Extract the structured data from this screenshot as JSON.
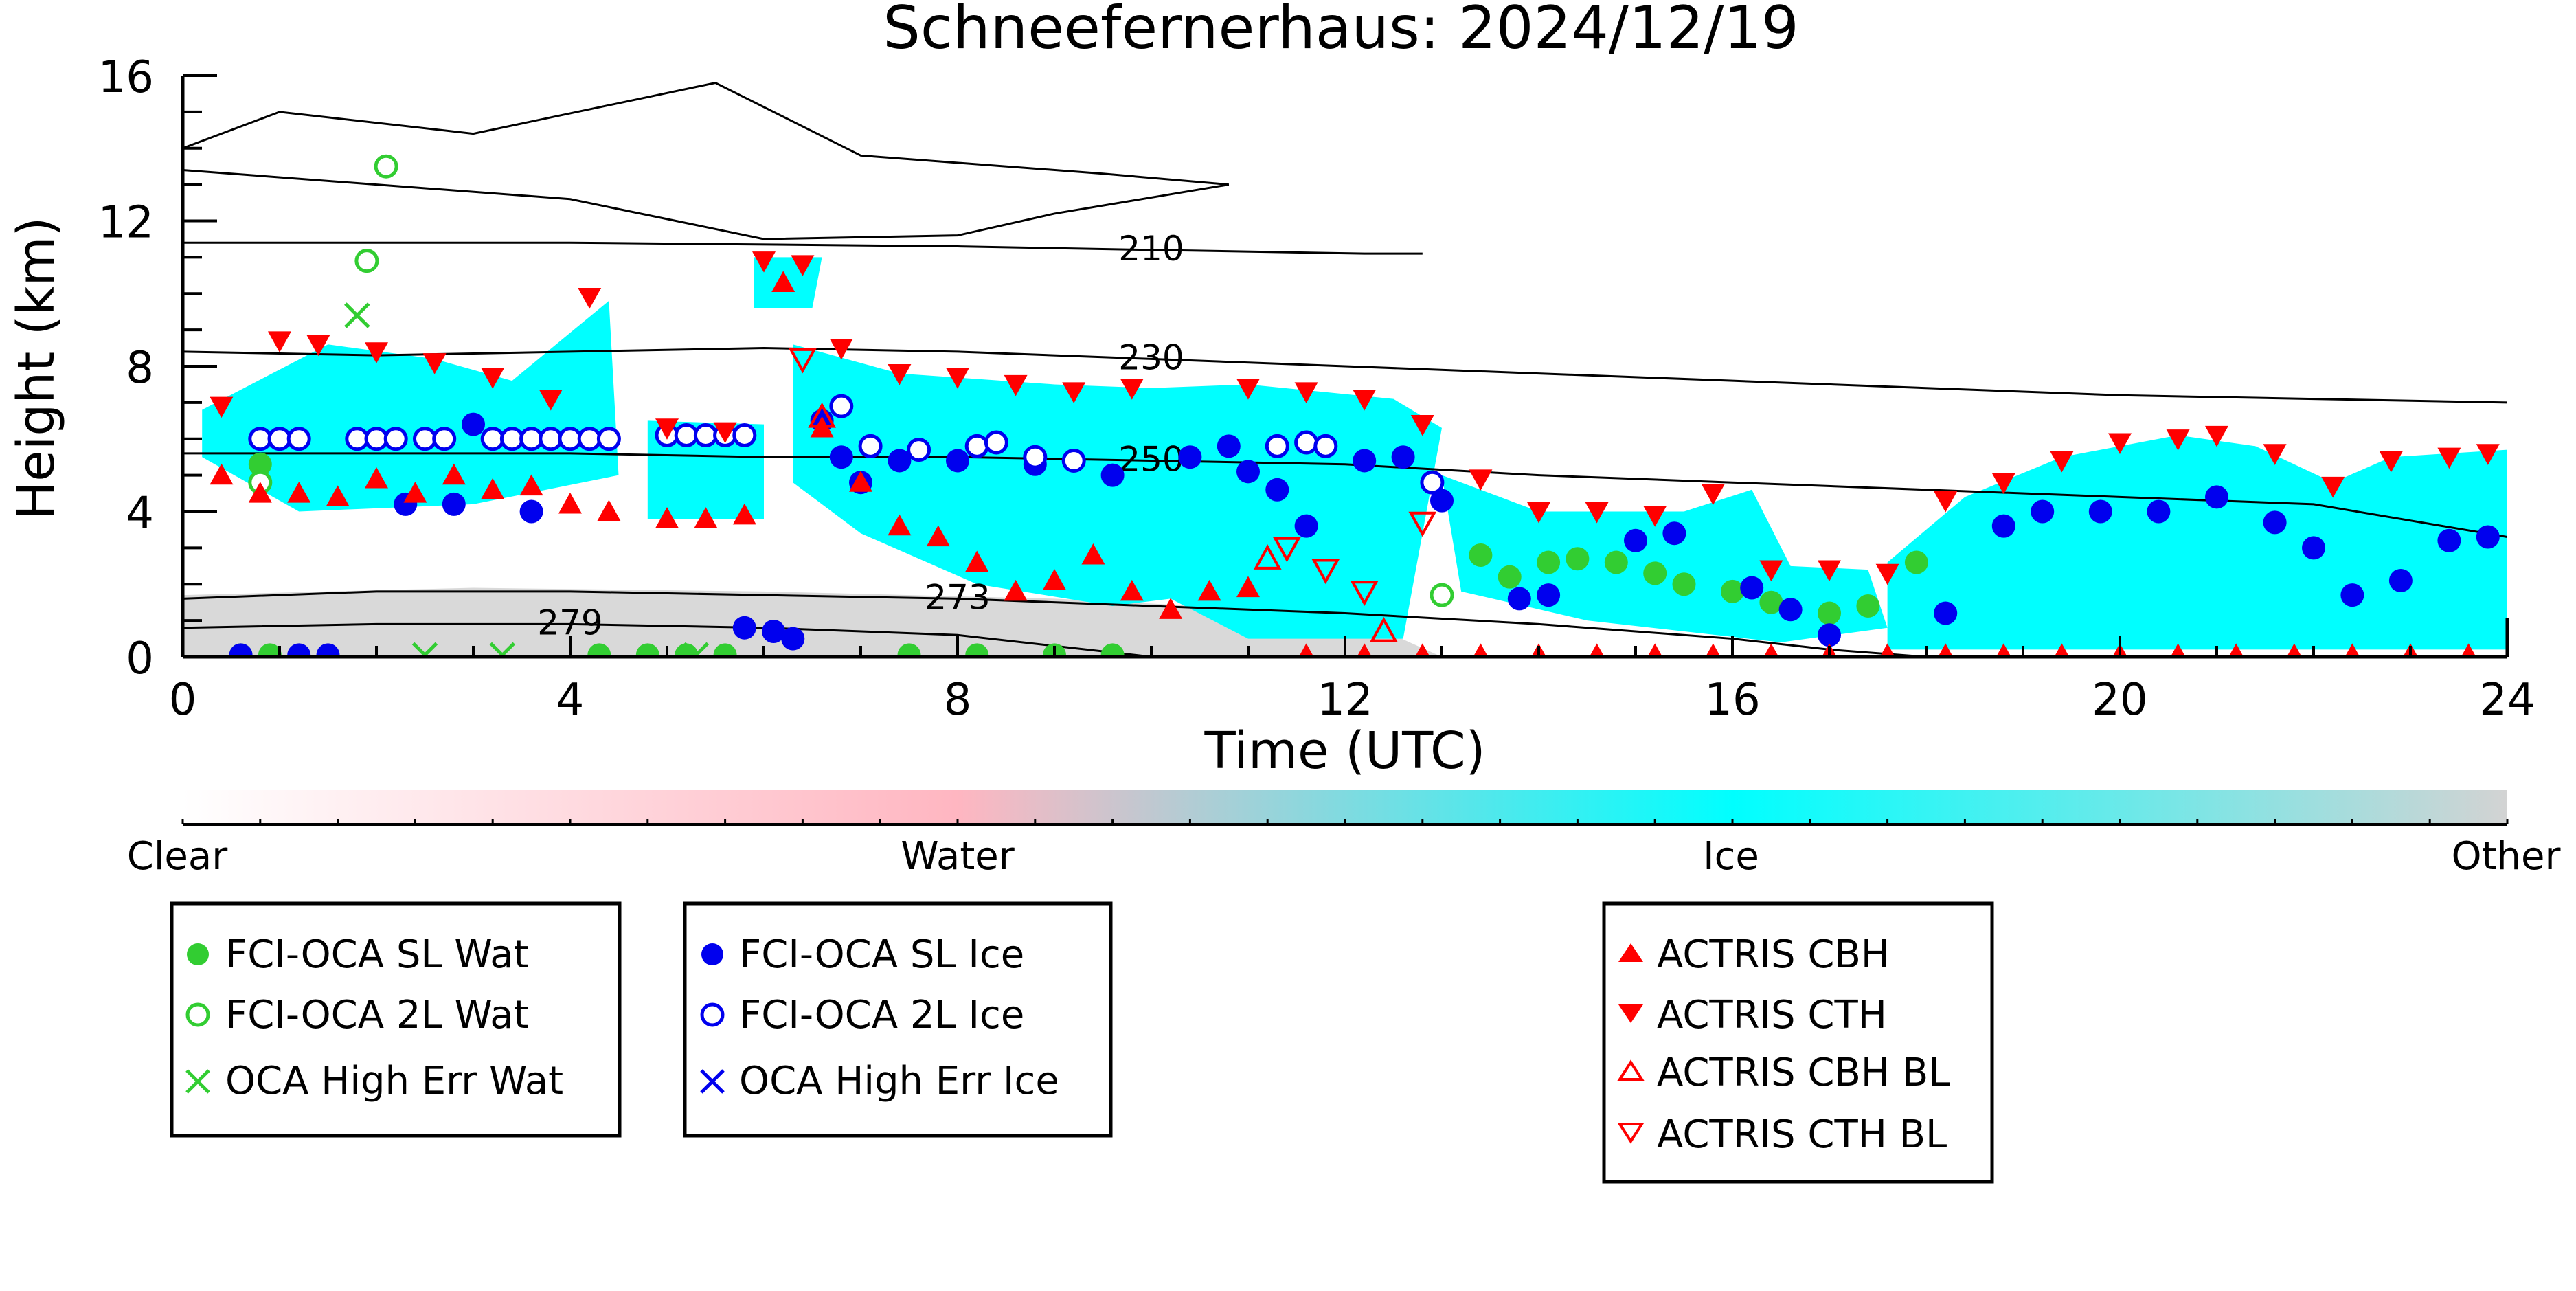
{
  "chart_data": {
    "type": "scatter",
    "title": "Schneefernerhaus: 2024/12/19",
    "xlabel": "Time (UTC)",
    "ylabel": "Height (km)",
    "xlim": [
      0,
      24
    ],
    "ylim": [
      0,
      16
    ],
    "x_ticks": [
      0,
      4,
      8,
      12,
      16,
      20,
      24
    ],
    "y_ticks": [
      0,
      4,
      8,
      12,
      16
    ],
    "grid": false,
    "colorbar": {
      "labels": [
        "Clear",
        "Water",
        "Ice",
        "Other"
      ],
      "colors": [
        "#ffffff",
        "#ffb6c1",
        "#00ffff",
        "#d3d3d3"
      ]
    },
    "temperature_contours": [
      {
        "label": "210",
        "x": [
          0,
          4,
          8,
          10,
          12.2,
          12.8
        ],
        "y": [
          11.4,
          11.4,
          11.3,
          11.2,
          11.1,
          11.1
        ]
      },
      {
        "label": "230",
        "x": [
          0,
          2,
          4,
          6,
          8,
          10,
          12,
          14,
          16,
          18,
          20,
          22,
          24
        ],
        "y": [
          8.4,
          8.3,
          8.4,
          8.5,
          8.4,
          8.2,
          8.0,
          7.8,
          7.6,
          7.4,
          7.2,
          7.1,
          7.0
        ]
      },
      {
        "label": "250",
        "x": [
          0,
          2,
          4,
          6,
          8,
          10,
          12,
          14,
          16,
          18,
          20,
          22,
          24
        ],
        "y": [
          5.6,
          5.6,
          5.6,
          5.5,
          5.5,
          5.4,
          5.3,
          5.0,
          4.8,
          4.6,
          4.4,
          4.2,
          3.3
        ]
      },
      {
        "label": "273",
        "x": [
          0,
          2,
          4,
          6,
          8,
          10,
          12,
          14,
          16,
          17,
          18
        ],
        "y": [
          1.6,
          1.8,
          1.8,
          1.7,
          1.6,
          1.4,
          1.2,
          0.9,
          0.5,
          0.2,
          0.0
        ]
      },
      {
        "label": "279",
        "x": [
          0,
          2,
          4,
          6,
          8,
          9,
          10
        ],
        "y": [
          0.8,
          0.9,
          0.9,
          0.8,
          0.6,
          0.3,
          0.0
        ]
      }
    ],
    "series": [
      {
        "name": "FCI-OCA SL Wat",
        "marker": "filled-circle",
        "color": "#32cd32",
        "x": [
          0.8,
          13.4,
          13.7,
          14.1,
          14.4,
          14.8,
          15.2,
          15.5,
          16.0,
          16.4,
          17.0,
          17.4,
          17.9,
          0.6,
          0.9,
          4.3,
          4.8,
          5.2,
          5.6,
          7.5,
          8.2,
          9.0,
          9.6
        ],
        "y": [
          5.3,
          2.8,
          2.2,
          2.6,
          2.7,
          2.6,
          2.3,
          2.0,
          1.8,
          1.5,
          1.2,
          1.4,
          2.6,
          0.05,
          0.05,
          0.05,
          0.05,
          0.05,
          0.05,
          0.05,
          0.05,
          0.05,
          0.05
        ]
      },
      {
        "name": "FCI-OCA 2L Wat",
        "marker": "open-circle",
        "color": "#32cd32",
        "x": [
          2.1,
          1.9,
          0.8,
          13.0
        ],
        "y": [
          13.5,
          10.9,
          4.8,
          1.7
        ]
      },
      {
        "name": "OCA High Err Wat",
        "marker": "x",
        "color": "#32cd32",
        "x": [
          1.8,
          2.5,
          3.3,
          5.3
        ],
        "y": [
          9.4,
          0.05,
          0.05,
          0.05
        ]
      },
      {
        "name": "FCI-OCA SL Ice",
        "marker": "filled-circle",
        "color": "#0000ee",
        "x": [
          0.6,
          1.2,
          1.5,
          2.3,
          2.8,
          3.0,
          3.6,
          5.8,
          6.1,
          6.3,
          6.6,
          6.8,
          7.0,
          7.4,
          8.0,
          8.8,
          9.6,
          10.4,
          10.8,
          11.0,
          11.3,
          11.6,
          12.2,
          12.6,
          13.0,
          13.8,
          14.1,
          15.0,
          15.4,
          16.2,
          16.6,
          17.0,
          18.2,
          18.8,
          19.2,
          19.8,
          20.4,
          21.0,
          21.6,
          22.0,
          22.4,
          22.9,
          23.4,
          23.8
        ],
        "y": [
          0.05,
          0.05,
          0.05,
          4.2,
          4.2,
          6.4,
          4.0,
          0.8,
          0.7,
          0.5,
          6.5,
          5.5,
          4.8,
          5.4,
          5.4,
          5.3,
          5.0,
          5.5,
          5.8,
          5.1,
          4.6,
          3.6,
          5.4,
          5.5,
          4.3,
          1.6,
          1.7,
          3.2,
          3.4,
          1.9,
          1.3,
          0.6,
          1.2,
          3.6,
          4.0,
          4.0,
          4.0,
          4.4,
          3.7,
          3.0,
          1.7,
          2.1,
          3.2,
          3.3
        ]
      },
      {
        "name": "FCI-OCA 2L Ice",
        "marker": "open-circle",
        "color": "#0000ee",
        "x": [
          0.8,
          1.0,
          1.2,
          1.8,
          2.0,
          2.2,
          2.5,
          2.7,
          3.2,
          3.4,
          3.6,
          3.8,
          4.0,
          4.2,
          4.4,
          5.0,
          5.2,
          5.4,
          5.6,
          5.8,
          6.8,
          7.1,
          7.6,
          8.2,
          8.4,
          8.8,
          9.2,
          11.3,
          11.6,
          11.8,
          12.9
        ],
        "y": [
          6.0,
          6.0,
          6.0,
          6.0,
          6.0,
          6.0,
          6.0,
          6.0,
          6.0,
          6.0,
          6.0,
          6.0,
          6.0,
          6.0,
          6.0,
          6.1,
          6.1,
          6.1,
          6.1,
          6.1,
          6.9,
          5.8,
          5.7,
          5.8,
          5.9,
          5.5,
          5.4,
          5.8,
          5.9,
          5.8,
          4.8
        ]
      },
      {
        "name": "OCA High Err Ice",
        "marker": "x",
        "color": "#0000ee",
        "x": [],
        "y": []
      },
      {
        "name": "ACTRIS CBH",
        "marker": "triangle-up",
        "color": "#ff0000",
        "x": [
          0.4,
          0.8,
          1.2,
          1.6,
          2.0,
          2.4,
          2.8,
          3.2,
          3.6,
          4.0,
          4.4,
          5.0,
          5.4,
          5.8,
          6.2,
          6.6,
          7.0,
          7.4,
          7.8,
          8.2,
          8.6,
          9.0,
          9.4,
          9.8,
          10.2,
          10.6,
          11.0,
          11.6,
          12.2,
          12.8,
          13.4,
          14.0,
          14.6,
          15.2,
          15.8,
          16.4,
          17.0,
          17.6,
          18.2,
          18.8,
          19.4,
          20.0,
          20.6,
          21.2,
          21.8,
          22.4,
          23.0,
          23.6
        ],
        "y": [
          5.0,
          4.5,
          4.5,
          4.4,
          4.9,
          4.5,
          5.0,
          4.6,
          4.7,
          4.2,
          4.0,
          3.8,
          3.8,
          3.9,
          10.3,
          6.3,
          4.8,
          3.6,
          3.3,
          2.6,
          1.8,
          2.1,
          2.8,
          1.8,
          1.3,
          1.8,
          1.9,
          0.05,
          0.05,
          0.05,
          0.05,
          0.05,
          0.05,
          0.05,
          0.05,
          0.05,
          0.05,
          0.05,
          0.05,
          0.05,
          0.05,
          0.05,
          0.05,
          0.05,
          0.05,
          0.05,
          0.05,
          0.05
        ]
      },
      {
        "name": "ACTRIS CTH",
        "marker": "triangle-down",
        "color": "#ff0000",
        "x": [
          0.4,
          1.0,
          1.4,
          2.0,
          2.6,
          3.2,
          3.8,
          4.2,
          5.0,
          5.6,
          6.0,
          6.4,
          6.8,
          7.4,
          8.0,
          8.6,
          9.2,
          9.8,
          11.0,
          11.6,
          12.2,
          12.8,
          13.4,
          14.0,
          14.6,
          15.2,
          15.8,
          16.4,
          17.0,
          17.6,
          18.2,
          18.8,
          19.4,
          20.0,
          20.6,
          21.0,
          21.6,
          22.2,
          22.8,
          23.4,
          23.8
        ],
        "y": [
          6.9,
          8.7,
          8.6,
          8.4,
          8.1,
          7.7,
          7.1,
          9.9,
          6.3,
          6.2,
          10.9,
          10.8,
          8.5,
          7.8,
          7.7,
          7.5,
          7.3,
          7.4,
          7.4,
          7.3,
          7.1,
          6.4,
          4.9,
          4.0,
          4.0,
          3.9,
          4.5,
          2.4,
          2.4,
          2.3,
          4.3,
          4.8,
          5.4,
          5.9,
          6.0,
          6.1,
          5.6,
          4.7,
          5.4,
          5.5,
          5.6
        ]
      },
      {
        "name": "ACTRIS CBH BL",
        "marker": "open-triangle-up",
        "color": "#ff0000",
        "x": [
          6.6,
          11.2,
          12.4
        ],
        "y": [
          6.6,
          2.7,
          0.7
        ]
      },
      {
        "name": "ACTRIS CTH BL",
        "marker": "open-triangle-down",
        "color": "#ff0000",
        "x": [
          6.4,
          11.4,
          11.8,
          12.2,
          12.8
        ],
        "y": [
          8.2,
          3.0,
          2.4,
          1.8,
          3.7
        ]
      }
    ],
    "legend": [
      {
        "group": "water",
        "placement": "bottom-left",
        "entries": [
          "FCI-OCA SL Wat",
          "FCI-OCA 2L Wat",
          "OCA High Err Wat"
        ]
      },
      {
        "group": "ice",
        "placement": "bottom-center-left",
        "entries": [
          "FCI-OCA SL Ice",
          "FCI-OCA 2L Ice",
          "OCA High Err Ice"
        ]
      },
      {
        "group": "actris",
        "placement": "bottom-center-right",
        "entries": [
          "ACTRIS CBH",
          "ACTRIS CTH",
          "ACTRIS CBH BL",
          "ACTRIS CTH BL"
        ]
      }
    ]
  }
}
